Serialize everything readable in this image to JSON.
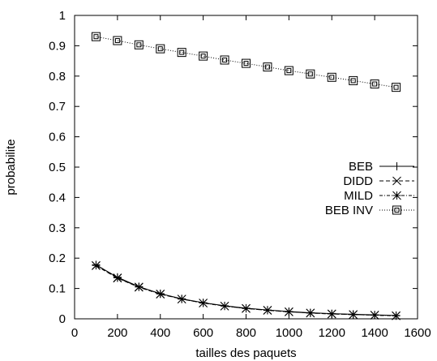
{
  "chart_data": {
    "type": "line",
    "title": "",
    "xlabel": "tailles des paquets",
    "ylabel": "probabilite",
    "xlim": [
      0,
      1600
    ],
    "ylim": [
      0,
      1
    ],
    "xticks": [
      0,
      200,
      400,
      600,
      800,
      1000,
      1200,
      1400,
      1600
    ],
    "yticks": [
      0,
      0.1,
      0.2,
      0.3,
      0.4,
      0.5,
      0.6,
      0.7,
      0.8,
      0.9,
      1
    ],
    "ytick_labels": [
      "0",
      "0.1",
      "0.2",
      "0.3",
      "0.4",
      "0.5",
      "0.6",
      "0.7",
      "0.8",
      "0.9",
      "1"
    ],
    "grid": false,
    "legend_position": "right-middle",
    "x": [
      100,
      200,
      300,
      400,
      500,
      600,
      700,
      800,
      900,
      1000,
      1100,
      1200,
      1300,
      1400,
      1500
    ],
    "series": [
      {
        "name": "BEB",
        "marker": "plus",
        "line_style": "solid",
        "values": [
          0.178,
          0.137,
          0.106,
          0.083,
          0.066,
          0.053,
          0.043,
          0.035,
          0.029,
          0.024,
          0.02,
          0.017,
          0.015,
          0.013,
          0.011
        ]
      },
      {
        "name": "DIDD",
        "marker": "cross",
        "line_style": "dashed",
        "values": [
          0.175,
          0.134,
          0.104,
          0.081,
          0.065,
          0.052,
          0.042,
          0.034,
          0.028,
          0.023,
          0.019,
          0.016,
          0.014,
          0.012,
          0.01
        ]
      },
      {
        "name": "MILD",
        "marker": "star",
        "line_style": "dash-dot",
        "values": [
          0.176,
          0.135,
          0.105,
          0.082,
          0.065,
          0.052,
          0.042,
          0.034,
          0.028,
          0.023,
          0.019,
          0.016,
          0.014,
          0.012,
          0.01
        ]
      },
      {
        "name": "BEB INV",
        "marker": "open-square",
        "line_style": "dotted",
        "values": [
          0.93,
          0.917,
          0.903,
          0.89,
          0.878,
          0.866,
          0.853,
          0.842,
          0.83,
          0.818,
          0.807,
          0.796,
          0.785,
          0.774,
          0.763
        ]
      }
    ]
  }
}
